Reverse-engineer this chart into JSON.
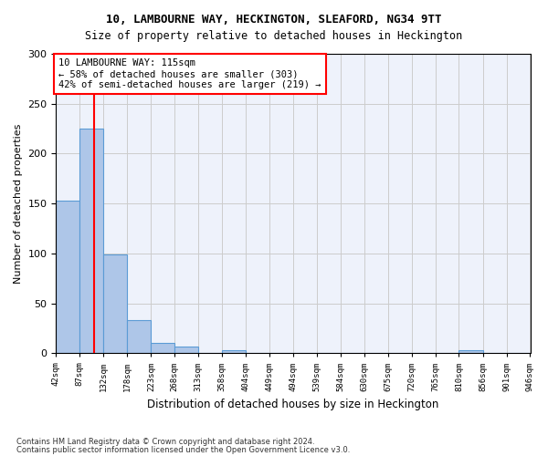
{
  "title1": "10, LAMBOURNE WAY, HECKINGTON, SLEAFORD, NG34 9TT",
  "title2": "Size of property relative to detached houses in Heckington",
  "xlabel": "Distribution of detached houses by size in Heckington",
  "ylabel": "Number of detached properties",
  "bar_edges": [
    42,
    87,
    132,
    178,
    223,
    268,
    313,
    358,
    404,
    449,
    494,
    539,
    584,
    630,
    675,
    720,
    765,
    810,
    856,
    901,
    946
  ],
  "bar_heights": [
    153,
    225,
    99,
    33,
    10,
    7,
    0,
    3,
    0,
    0,
    0,
    0,
    0,
    0,
    0,
    0,
    0,
    3,
    0,
    0
  ],
  "bar_color": "#aec6e8",
  "bar_edge_color": "#5b9bd5",
  "vline_x": 115,
  "vline_color": "red",
  "annotation_line1": "10 LAMBOURNE WAY: 115sqm",
  "annotation_line2": "← 58% of detached houses are smaller (303)",
  "annotation_line3": "42% of semi-detached houses are larger (219) →",
  "ylim": [
    0,
    300
  ],
  "yticks": [
    0,
    50,
    100,
    150,
    200,
    250,
    300
  ],
  "grid_color": "#cccccc",
  "bg_color": "#eef2fb",
  "footer1": "Contains HM Land Registry data © Crown copyright and database right 2024.",
  "footer2": "Contains public sector information licensed under the Open Government Licence v3.0."
}
